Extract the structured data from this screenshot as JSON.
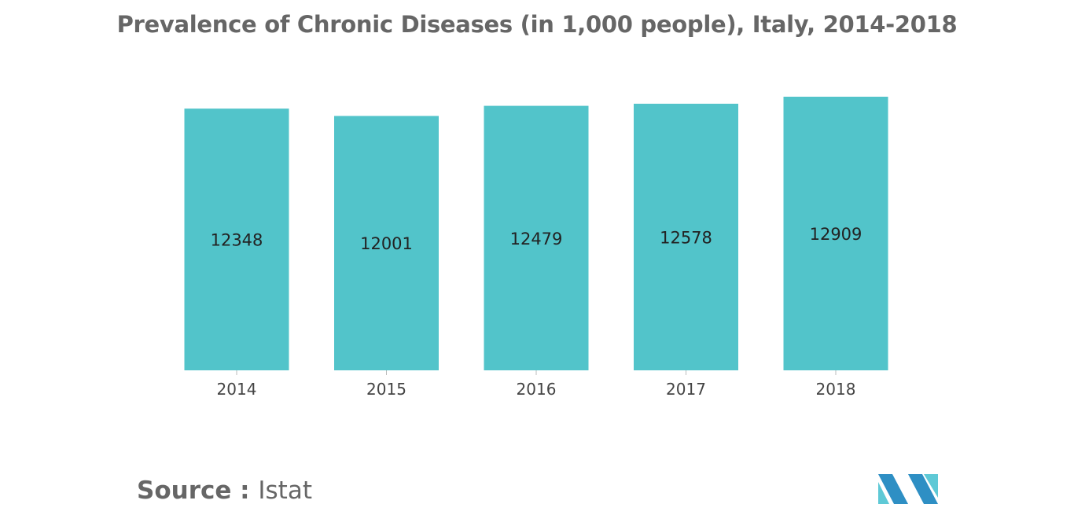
{
  "chart_data": {
    "type": "bar",
    "title": "Prevalence of Chronic Diseases (in 1,000 people), Italy, 2014-2018",
    "categories": [
      "2014",
      "2015",
      "2016",
      "2017",
      "2018"
    ],
    "values": [
      12348,
      12001,
      12479,
      12578,
      12909
    ],
    "data_labels": [
      "12348",
      "12001",
      "12479",
      "12578",
      "12909"
    ],
    "xlabel": "",
    "ylabel": "",
    "ylim": [
      0,
      12909
    ],
    "grid": false,
    "legend": "none",
    "bar_color": "#52c4ca"
  },
  "source": {
    "prefix": "Source : ",
    "name": "Istat"
  },
  "logo": {
    "icon": "mordor-intelligence-logo",
    "colors": [
      "#2e8fc4",
      "#5ec9d6"
    ]
  }
}
